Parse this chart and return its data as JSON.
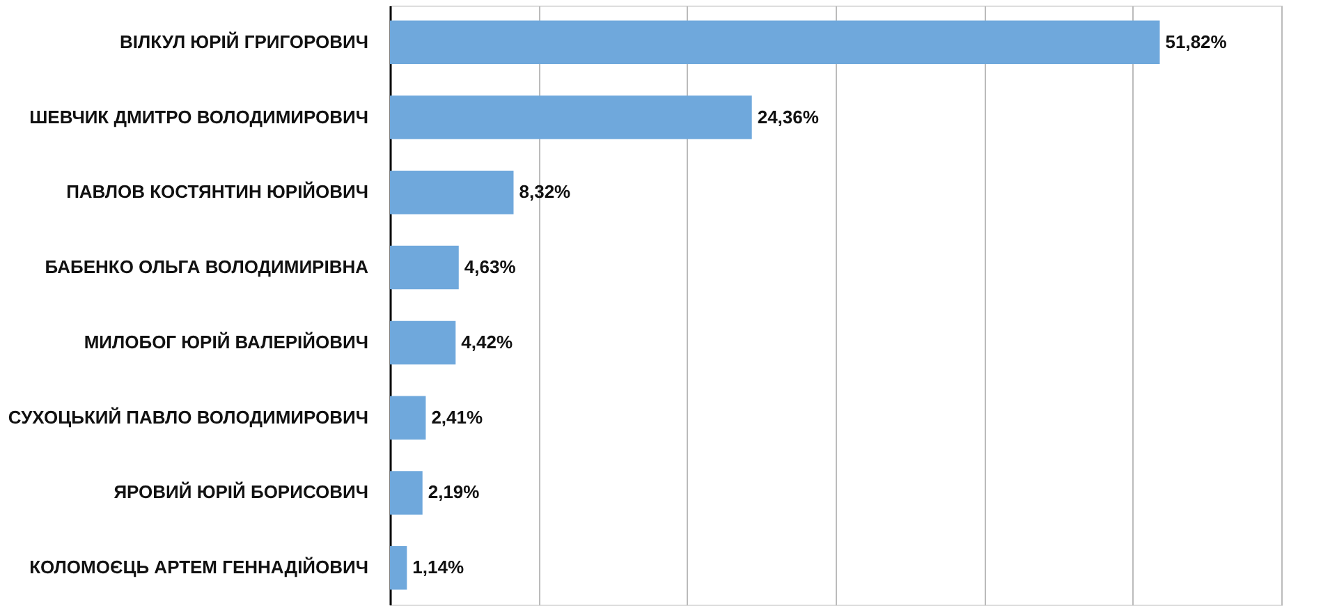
{
  "chart_data": {
    "type": "bar",
    "orientation": "horizontal",
    "categories": [
      "ВІЛКУЛ ЮРІЙ ГРИГОРОВИЧ",
      "ШЕВЧИК ДМИТРО ВОЛОДИМИРОВИЧ",
      "ПАВЛОВ КОСТЯНТИН ЮРІЙОВИЧ",
      "БАБЕНКО ОЛЬГА ВОЛОДИМИРІВНА",
      "МИЛОБОГ ЮРІЙ ВАЛЕРІЙОВИЧ",
      "СУХОЦЬКИЙ ПАВЛО ВОЛОДИМИРОВИЧ",
      "ЯРОВИЙ ЮРІЙ БОРИСОВИЧ",
      "КОЛОМОЄЦЬ АРТЕМ ГЕННАДІЙОВИЧ"
    ],
    "values": [
      51.82,
      24.36,
      8.32,
      4.63,
      4.42,
      2.41,
      2.19,
      1.14
    ],
    "value_labels": [
      "51,82%",
      "24,36%",
      "8,32%",
      "4,63%",
      "4,42%",
      "2,41%",
      "2,19%",
      "1,14%"
    ],
    "color": "#6fa8dc",
    "xlim": [
      0,
      60
    ],
    "xticks": [
      {
        "value": 0,
        "label": null
      },
      {
        "value": 10,
        "label": null
      },
      {
        "value": 20,
        "label": null
      },
      {
        "value": 30,
        "label": null
      },
      {
        "value": 40,
        "label": null
      },
      {
        "value": 50,
        "label": null
      },
      {
        "value": 60,
        "label": null
      }
    ],
    "grid": "x",
    "tick_labels": "y"
  }
}
